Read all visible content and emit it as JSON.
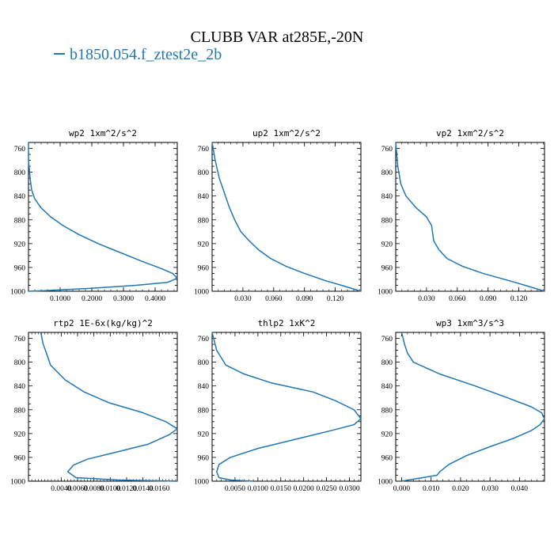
{
  "title": "CLUBB VAR at285E,-20N",
  "legend": {
    "label": "b1850.054.f_ztest2e_2b",
    "color": "#1f77b4"
  },
  "chart_data": [
    {
      "type": "line",
      "title": "wp2   1xm^2/s^2",
      "ylim": [
        1000,
        750
      ],
      "yticks": [
        "760",
        "800",
        "840",
        "880",
        "920",
        "960",
        "1000"
      ],
      "xlim": [
        0.0,
        0.47
      ],
      "xticks": [
        0.1,
        0.2,
        0.3,
        0.4
      ],
      "xticklabels": [
        "0.1000",
        "0.2000",
        "0.3000",
        "0.4000"
      ],
      "series": [
        {
          "x": [
            0.0,
            0.0,
            0.005,
            0.01,
            0.02,
            0.04,
            0.07,
            0.11,
            0.16,
            0.22,
            0.29,
            0.36,
            0.42,
            0.455,
            0.47,
            0.44,
            0.34,
            0.2,
            0.05,
            0.0
          ],
          "y": [
            750,
            780,
            810,
            830,
            845,
            860,
            875,
            890,
            905,
            920,
            935,
            950,
            962,
            970,
            978,
            985,
            990,
            995,
            999,
            1000
          ]
        }
      ]
    },
    {
      "type": "line",
      "title": "up2   1xm^2/s^2",
      "ylim": [
        1000,
        750
      ],
      "yticks": [
        "760",
        "800",
        "840",
        "880",
        "920",
        "960",
        "1000"
      ],
      "xlim": [
        0.0,
        0.145
      ],
      "xticks": [
        0.03,
        0.06,
        0.09,
        0.12
      ],
      "xticklabels": [
        "0.030",
        "0.060",
        "0.090",
        "0.120"
      ],
      "series": [
        {
          "x": [
            0.0,
            0.003,
            0.007,
            0.012,
            0.017,
            0.022,
            0.028,
            0.036,
            0.045,
            0.057,
            0.072,
            0.09,
            0.11,
            0.13,
            0.145
          ],
          "y": [
            750,
            780,
            810,
            835,
            860,
            880,
            900,
            915,
            930,
            945,
            958,
            970,
            982,
            992,
            1000
          ]
        }
      ]
    },
    {
      "type": "line",
      "title": "vp2   1xm^2/s^2",
      "ylim": [
        1000,
        750
      ],
      "yticks": [
        "760",
        "800",
        "840",
        "880",
        "920",
        "960",
        "1000"
      ],
      "xlim": [
        0.0,
        0.145
      ],
      "xticks": [
        0.03,
        0.06,
        0.09,
        0.12
      ],
      "xticklabels": [
        "0.030",
        "0.060",
        "0.090",
        "0.120"
      ],
      "series": [
        {
          "x": [
            0.0,
            0.002,
            0.005,
            0.01,
            0.02,
            0.03,
            0.035,
            0.037,
            0.042,
            0.05,
            0.065,
            0.085,
            0.11,
            0.13,
            0.145
          ],
          "y": [
            750,
            790,
            820,
            840,
            860,
            875,
            890,
            915,
            930,
            945,
            958,
            970,
            982,
            992,
            1000
          ]
        }
      ]
    },
    {
      "type": "line",
      "title": "rtp2   1E-6x(kg/kg)^2",
      "ylim": [
        1000,
        750
      ],
      "yticks": [
        "760",
        "800",
        "840",
        "880",
        "920",
        "960",
        "1000"
      ],
      "xlim": [
        0.0,
        0.0182
      ],
      "xticks": [
        0.004,
        0.006,
        0.008,
        0.01,
        0.012,
        0.014,
        0.016
      ],
      "xticklabels": [
        "0.0040",
        "0.0060",
        "0.0080",
        "0.0100",
        "0.0120",
        "0.0140",
        "0.0160"
      ],
      "series": [
        {
          "x": [
            0.0015,
            0.0018,
            0.0022,
            0.0027,
            0.0045,
            0.0068,
            0.0098,
            0.014,
            0.0168,
            0.0182,
            0.0172,
            0.0146,
            0.0105,
            0.0072,
            0.0055,
            0.0048,
            0.0058,
            0.011,
            0.0182
          ],
          "y": [
            750,
            770,
            785,
            805,
            830,
            850,
            868,
            885,
            900,
            912,
            922,
            938,
            952,
            963,
            973,
            984,
            994,
            998,
            1000
          ]
        }
      ]
    },
    {
      "type": "line",
      "title": "thlp2   1xK^2",
      "ylim": [
        1000,
        750
      ],
      "yticks": [
        "760",
        "800",
        "840",
        "880",
        "920",
        "960",
        "1000"
      ],
      "xlim": [
        0.0,
        0.0325
      ],
      "xticks": [
        0.005,
        0.01,
        0.015,
        0.02,
        0.025,
        0.03
      ],
      "xticklabels": [
        "0.0050",
        "0.0100",
        "0.0150",
        "0.0200",
        "0.0250",
        "0.0300"
      ],
      "series": [
        {
          "x": [
            0.0,
            0.001,
            0.003,
            0.007,
            0.013,
            0.022,
            0.027,
            0.031,
            0.0325,
            0.031,
            0.026,
            0.018,
            0.01,
            0.004,
            0.0015,
            0.001,
            0.0015,
            0.004,
            0.009
          ],
          "y": [
            750,
            780,
            805,
            820,
            835,
            850,
            865,
            880,
            895,
            905,
            915,
            930,
            945,
            960,
            972,
            984,
            994,
            998,
            1000
          ]
        }
      ]
    },
    {
      "type": "line",
      "title": "wp3   1xm^3/s^3",
      "ylim": [
        1000,
        750
      ],
      "yticks": [
        "760",
        "800",
        "840",
        "880",
        "920",
        "960",
        "1000"
      ],
      "xlim": [
        -0.002,
        0.0485
      ],
      "xticks": [
        0.0,
        0.01,
        0.02,
        0.03,
        0.04
      ],
      "xticklabels": [
        "0.000",
        "0.010",
        "0.020",
        "0.030",
        "0.040"
      ],
      "series": [
        {
          "x": [
            0.0,
            0.001,
            0.002,
            0.004,
            0.013,
            0.025,
            0.036,
            0.044,
            0.0475,
            0.0485,
            0.047,
            0.044,
            0.038,
            0.03,
            0.022,
            0.016,
            0.013,
            0.012,
            0.006,
            0.0
          ],
          "y": [
            750,
            770,
            785,
            800,
            820,
            840,
            860,
            875,
            885,
            895,
            905,
            915,
            928,
            942,
            957,
            972,
            984,
            990,
            995,
            1000
          ]
        }
      ]
    }
  ]
}
